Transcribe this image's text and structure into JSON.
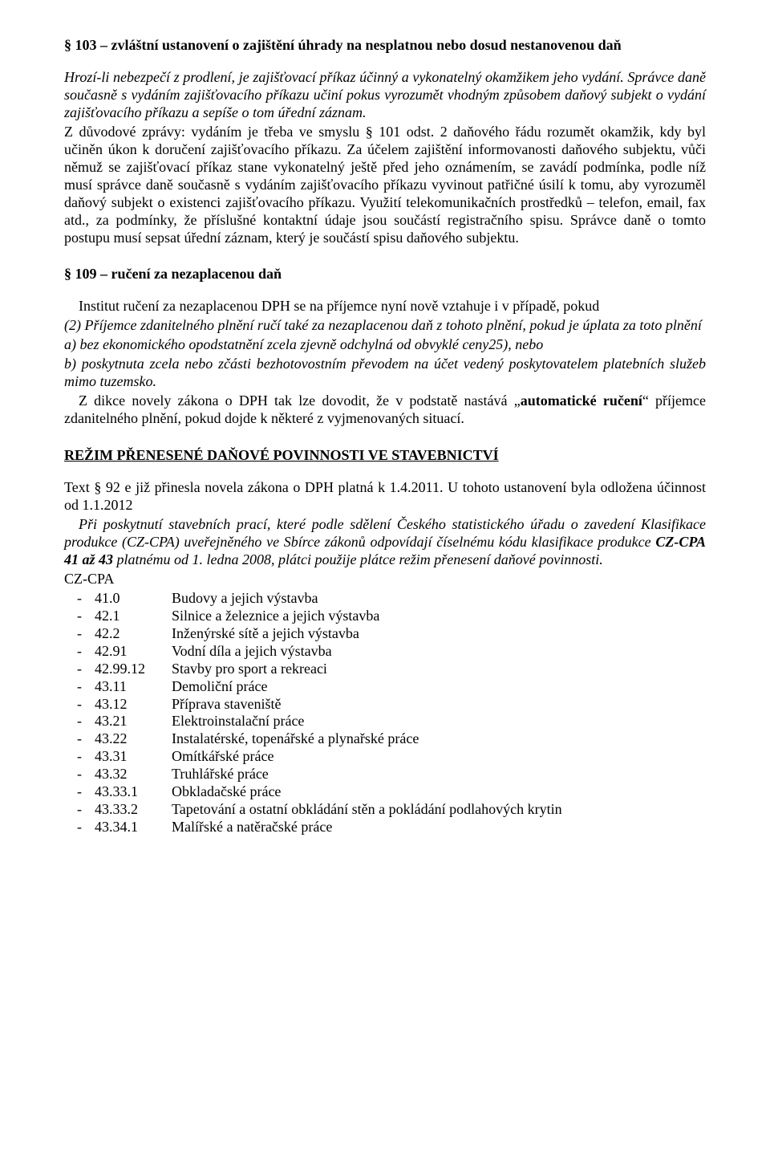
{
  "doc": {
    "background_color": "#ffffff",
    "text_color": "#000000",
    "font_family": "Times New Roman",
    "body_fontsize_pt": 13.5,
    "line_height": 1.22
  },
  "s103": {
    "title": "§ 103 – zvláštní ustanovení o zajištění úhrady na nesplatnou nebo dosud nestanovenou daň",
    "italic1": "Hrozí-li nebezpečí z prodlení, je zajišťovací příkaz účinný a vykonatelný okamžikem jeho vydání. Správce daně současně s vydáním zajišťovacího příkazu učiní pokus vyrozumět vhodným způsobem daňový subjekt o vydání zajišťovacího příkazu a sepíše o tom úřední záznam.",
    "body": "Z důvodové zprávy: vydáním je třeba ve smyslu § 101 odst. 2 daňového řádu rozumět okamžik, kdy byl učiněn úkon k doručení zajišťovacího příkazu. Za účelem zajištění informovanosti daňového subjektu, vůči němuž se zajišťovací příkaz stane vykonatelný ještě před jeho oznámením, se zavádí podmínka, podle níž musí správce daně současně s vydáním zajišťovacího příkazu vyvinout patřičné úsilí k tomu, aby vyrozuměl daňový subjekt o existenci zajišťovacího příkazu. Využití telekomunikačních prostředků – telefon, email, fax atd., za podmínky, že příslušné kontaktní údaje jsou součástí registračního spisu. Správce daně o tomto postupu musí sepsat úřední záznam, který je součástí spisu daňového subjektu."
  },
  "s109": {
    "title": "§ 109 – ručení za nezaplacenou daň",
    "intro": "Institut ručení  za nezaplacenou DPH se na příjemce nyní nově vztahuje i v případě, pokud",
    "italic_block": "(2) Příjemce zdanitelného plnění ručí také za nezaplacenou daň z tohoto plnění, pokud je úplata za toto plnění",
    "a": " a) bez ekonomického opodstatnění zcela zjevně odchylná od obvyklé ceny25), nebo",
    "b": " b) poskytnuta zcela nebo zčásti bezhotovostním převodem na účet vedený poskytovatelem platebních služeb mimo tuzemsko.",
    "tail_pre": "Z dikce novely zákona o DPH tak lze dovodit, že v podstatě nastává „",
    "tail_bold": "automatické ručení",
    "tail_post": "“ příjemce zdanitelného plnění, pokud dojde k některé z vyjmenovaných situací."
  },
  "rezim": {
    "title": "REŽIM PŘENESENÉ DAŇOVÉ POVINNOSTI VE STAVEBNICTVÍ",
    "p1": "Text § 92 e již přinesla novela zákona o DPH platná k 1.4.2011. U tohoto ustanovení byla odložena účinnost od 1.1.2012",
    "italic_pre": "Při poskytnutí stavebních prací, které podle sdělení Českého statistického úřadu o zavedení Klasifikace produkce (CZ-CPA) uveřejněného ve Sbírce zákonů odpovídají číselnému kódu klasifikace produkce ",
    "italic_bold": "CZ-CPA 41 až 43",
    "italic_post": " platnému od 1. ledna 2008, plátci použije plátce režim přenesení daňové povinnosti.",
    "cz_label": "CZ-CPA",
    "items": [
      {
        "code": "41.0",
        "label": "Budovy a jejich výstavba"
      },
      {
        "code": "42.1",
        "label": "Silnice a železnice a jejich výstavba"
      },
      {
        "code": "42.2",
        "label": "Inženýrské sítě a jejich výstavba"
      },
      {
        "code": "42.91",
        "label": "Vodní díla a jejich výstavba"
      },
      {
        "code": "42.99.12",
        "label": "Stavby pro sport a rekreaci"
      },
      {
        "code": "43.11",
        "label": "Demoliční práce"
      },
      {
        "code": "43.12",
        "label": "Příprava staveniště"
      },
      {
        "code": "43.21",
        "label": "Elektroinstalační práce"
      },
      {
        "code": "43.22",
        "label": "Instalatérské, topenářské a plynařské práce"
      },
      {
        "code": "43.31",
        "label": "Omítkářské práce"
      },
      {
        "code": "43.32",
        "label": "Truhlářské práce"
      },
      {
        "code": "43.33.1",
        "label": "Obkladačské práce"
      },
      {
        "code": "43.33.2",
        "label": "Tapetování a ostatní obkládání stěn a pokládání podlahových krytin"
      },
      {
        "code": "43.34.1",
        "label": "Malířské a natěračské práce"
      }
    ]
  }
}
